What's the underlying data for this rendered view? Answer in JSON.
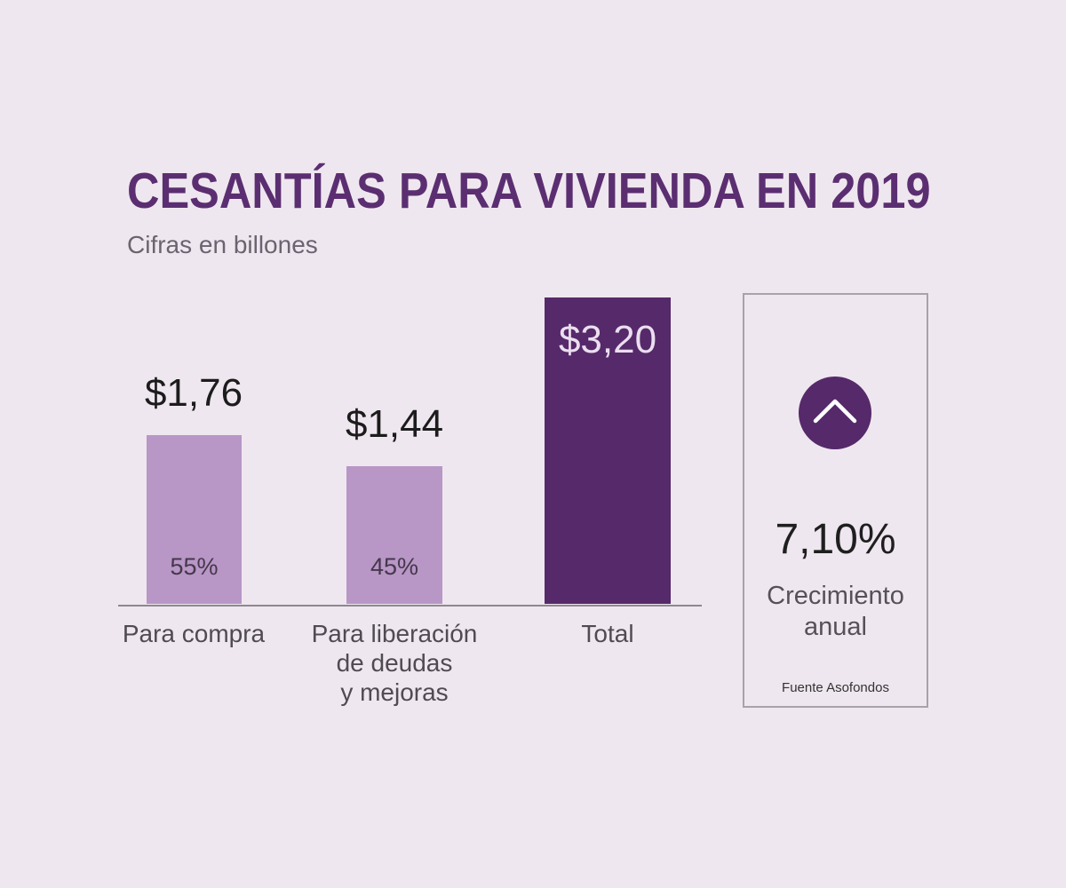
{
  "colors": {
    "background": "#efe7ef",
    "title": "#5b2e71",
    "accent": "#56296a",
    "panel_border": "#a8a2ab"
  },
  "chart_data": {
    "type": "bar",
    "title": "CESANTÍAS PARA VIVIENDA EN 2019",
    "subtitle": "Cifras en billones",
    "categories": [
      "Para compra",
      "Para liberación\nde deudas\ny mejoras",
      "Total"
    ],
    "values": [
      1.76,
      1.44,
      3.2
    ],
    "value_labels": [
      "$1,76",
      "$1,44",
      "$3,20"
    ],
    "share_labels": [
      "55%",
      "45%"
    ],
    "bar_colors": [
      "#b896c6",
      "#b896c6",
      "#56296a"
    ],
    "grid": false,
    "legend": "none"
  },
  "growth_panel": {
    "icon": "chevron-up-icon",
    "value": "7,10%",
    "label": "Crecimiento\nanual",
    "source": "Fuente Asofondos"
  }
}
